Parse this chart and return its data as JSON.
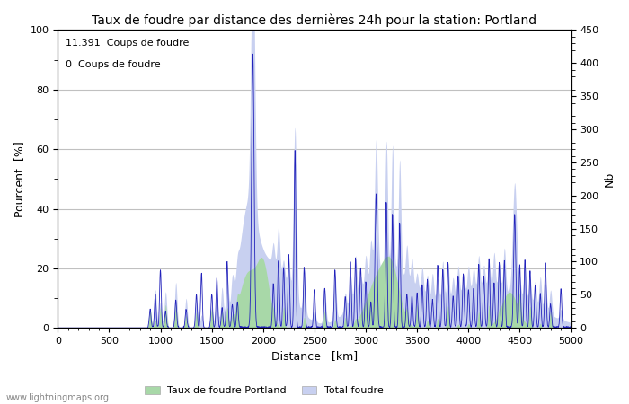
{
  "title": "Taux de foudre par distance des dernières 24h pour la station: Portland",
  "xlabel": "Distance   [km]",
  "ylabel_left": "Pourcent  [%]",
  "ylabel_right": "Nb",
  "legend_line1": "11.391  Coups de foudre",
  "legend_line2": "0  Coups de foudre",
  "legend_label1": "Taux de foudre Portland",
  "legend_label2": "Total foudre",
  "fill_color1": "#a8d8a8",
  "fill_color2": "#c8d0f0",
  "line_color": "#2222bb",
  "watermark": "www.lightningmaps.org",
  "xlim": [
    0,
    5000
  ],
  "ylim_left": [
    0,
    100
  ],
  "ylim_right": [
    0,
    450
  ],
  "xticks": [
    0,
    500,
    1000,
    1500,
    2000,
    2500,
    3000,
    3500,
    4000,
    4500,
    5000
  ],
  "yticks_left": [
    0,
    20,
    40,
    60,
    80,
    100
  ],
  "yticks_right": [
    0,
    50,
    100,
    150,
    200,
    250,
    300,
    350,
    400,
    450
  ],
  "background_color": "#ffffff",
  "grid_color": "#c0c0c0"
}
